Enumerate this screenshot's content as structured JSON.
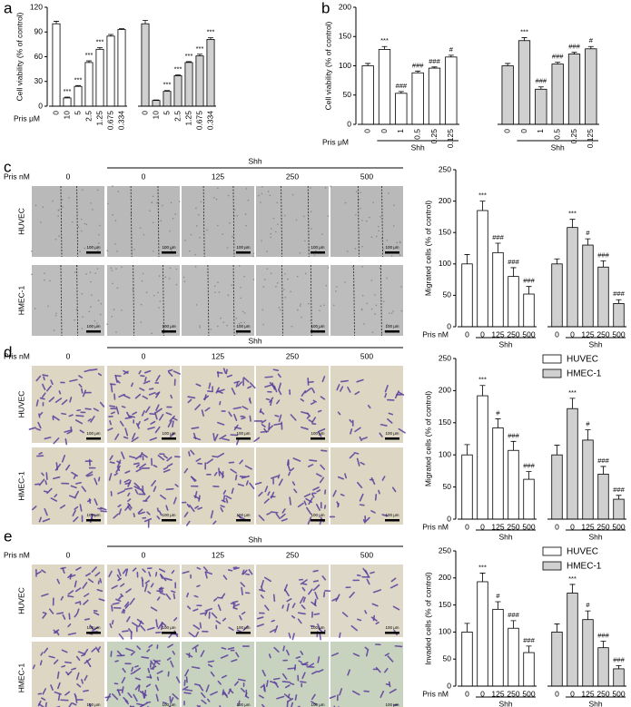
{
  "panel_labels": [
    "a",
    "b",
    "c",
    "d",
    "e"
  ],
  "chart_data": [
    {
      "type": "grouped_bar",
      "ylabel": "Cell viability (% of control)",
      "xlabel": "Pris μM",
      "ylim": [
        0,
        120
      ],
      "yticks": [
        0,
        30,
        60,
        90,
        120
      ],
      "groups": [
        {
          "color": "#ffffff",
          "categories": [
            "0",
            "10",
            "5",
            "2.5",
            "1.25",
            "0.675",
            "0.334"
          ],
          "values": [
            100,
            10,
            24,
            53,
            69,
            85,
            93
          ],
          "errors": [
            3,
            1,
            1,
            2,
            2,
            2,
            1
          ],
          "annotations": [
            null,
            "***",
            "***",
            "***",
            "***",
            null,
            null
          ]
        },
        {
          "color": "#d0d0d0",
          "categories": [
            "0",
            "10",
            "5",
            "2.5",
            "1.25",
            "0.675",
            "0.334"
          ],
          "values": [
            100,
            7,
            18,
            37,
            53,
            61,
            81
          ],
          "errors": [
            4,
            0.5,
            1,
            1,
            1,
            2,
            2
          ],
          "annotations": [
            null,
            null,
            "***",
            "***",
            "***",
            "***",
            "***"
          ]
        }
      ]
    },
    {
      "type": "grouped_bar",
      "ylabel": "Cell viability (% of control)",
      "xlabel": "Pris μM",
      "bracket_label": "Shh",
      "ylim": [
        0,
        200
      ],
      "yticks": [
        0,
        50,
        100,
        150,
        200
      ],
      "groups": [
        {
          "color": "#ffffff",
          "categories": [
            "0",
            "0",
            "1",
            "0.5",
            "0.25",
            "0.125"
          ],
          "values": [
            100,
            128,
            53,
            88,
            96,
            115
          ],
          "errors": [
            4,
            5,
            3,
            3,
            2,
            3
          ],
          "annotations": [
            null,
            "***",
            "###",
            "###",
            "###",
            "#"
          ]
        },
        {
          "color": "#d0d0d0",
          "categories": [
            "0",
            "0",
            "1",
            "0.5",
            "0.25",
            "0.125"
          ],
          "values": [
            100,
            143,
            60,
            103,
            120,
            129
          ],
          "errors": [
            4,
            5,
            4,
            3,
            3,
            4
          ],
          "annotations": [
            null,
            "***",
            "###",
            "###",
            "###",
            "#"
          ]
        }
      ]
    },
    {
      "type": "grouped_bar",
      "ylabel": "Migrated cells (% of control)",
      "xlabel": "Pris nM",
      "bracket_label": "Shh",
      "ylim": [
        0,
        250
      ],
      "yticks": [
        0,
        50,
        100,
        150,
        200,
        250
      ],
      "groups": [
        {
          "color": "#ffffff",
          "categories": [
            "0",
            "0",
            "125",
            "250",
            "500"
          ],
          "values": [
            100,
            185,
            118,
            80,
            52
          ],
          "errors": [
            15,
            15,
            15,
            14,
            12
          ],
          "annotations": [
            null,
            "***",
            "###",
            "###",
            "###"
          ]
        },
        {
          "color": "#d0d0d0",
          "categories": [
            "0",
            "0",
            "125",
            "250",
            "500"
          ],
          "values": [
            100,
            158,
            130,
            95,
            37
          ],
          "errors": [
            8,
            13,
            10,
            10,
            6
          ],
          "annotations": [
            null,
            "***",
            "#",
            "###",
            "###"
          ]
        }
      ]
    },
    {
      "type": "grouped_bar",
      "ylabel": "Migrated cells (% of control)",
      "xlabel": "Pris nM",
      "bracket_label": "Shh",
      "legend": "upper right",
      "ylim": [
        0,
        250
      ],
      "yticks": [
        0,
        50,
        100,
        150,
        200,
        250
      ],
      "groups": [
        {
          "name": "HUVEC",
          "color": "#ffffff",
          "categories": [
            "0",
            "0",
            "125",
            "250",
            "500"
          ],
          "values": [
            100,
            192,
            142,
            107,
            62
          ],
          "errors": [
            16,
            16,
            14,
            14,
            12
          ],
          "annotations": [
            null,
            "***",
            "#",
            "###",
            "###"
          ]
        },
        {
          "name": "HMEC-1",
          "color": "#d0d0d0",
          "categories": [
            "0",
            "0",
            "125",
            "250",
            "500"
          ],
          "values": [
            100,
            172,
            123,
            70,
            31
          ],
          "errors": [
            15,
            16,
            16,
            12,
            6
          ],
          "annotations": [
            null,
            "***",
            "#",
            "###",
            "###"
          ]
        }
      ]
    },
    {
      "type": "grouped_bar",
      "ylabel": "Invaded cells (% of control)",
      "xlabel": "Pris nM",
      "bracket_label": "Shh",
      "legend": "upper right",
      "ylim": [
        0,
        250
      ],
      "yticks": [
        0,
        50,
        100,
        150,
        200,
        250
      ],
      "groups": [
        {
          "name": "HUVEC",
          "color": "#ffffff",
          "categories": [
            "0",
            "0",
            "125",
            "250",
            "500"
          ],
          "values": [
            100,
            193,
            142,
            107,
            62
          ],
          "errors": [
            16,
            16,
            14,
            14,
            12
          ],
          "annotations": [
            null,
            "***",
            "#",
            "###",
            "###"
          ]
        },
        {
          "name": "HMEC-1",
          "color": "#d0d0d0",
          "categories": [
            "0",
            "0",
            "125",
            "250",
            "500"
          ],
          "values": [
            100,
            172,
            123,
            71,
            32
          ],
          "errors": [
            15,
            16,
            16,
            12,
            6
          ],
          "annotations": [
            null,
            "***",
            "#",
            "###",
            "###"
          ]
        }
      ]
    }
  ],
  "image_panels": [
    {
      "style": "scratch",
      "x_label": "Pris nM",
      "bracket_label": "Shh",
      "columns": [
        "0",
        "0",
        "125",
        "250",
        "500"
      ],
      "rows": [
        "HUVEC",
        "HMEC-1"
      ],
      "scale_label": "100 μm"
    },
    {
      "style": "stain",
      "x_label": "Pris nM",
      "bracket_label": "Shh",
      "columns": [
        "0",
        "0",
        "125",
        "250",
        "500"
      ],
      "rows": [
        "HUVEC",
        "HMEC-1"
      ],
      "scale_label": "100 μm"
    },
    {
      "style": "stain",
      "x_label": "Pris nM",
      "bracket_label": "Shh",
      "columns": [
        "0",
        "0",
        "125",
        "250",
        "500"
      ],
      "rows": [
        "HUVEC",
        "HMEC-1"
      ],
      "scale_label": "100 μm"
    }
  ]
}
